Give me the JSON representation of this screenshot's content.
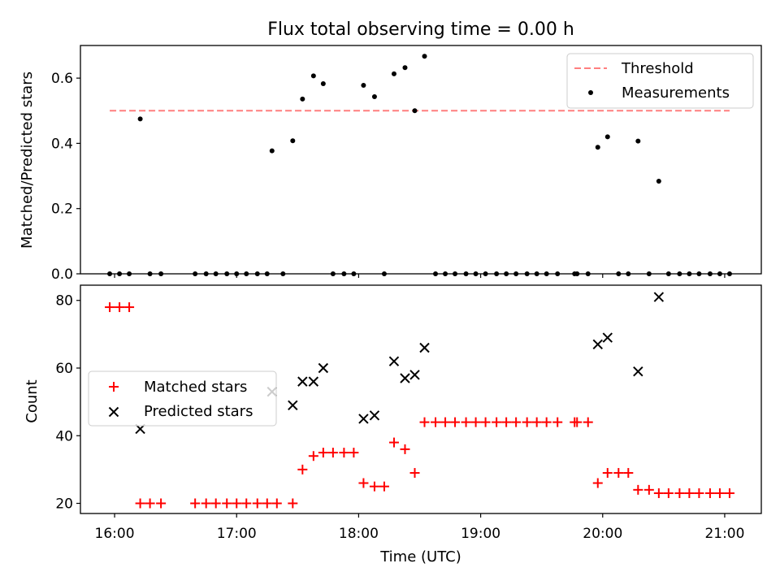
{
  "figure": {
    "title": "Flux total observing time = 0.00 h"
  },
  "chart_data": [
    {
      "type": "scatter",
      "ylabel": "Matched/Predicted stars",
      "xlim": [
        15.72,
        21.3
      ],
      "ylim": [
        0,
        0.7
      ],
      "yticks": [
        0.0,
        0.2,
        0.4,
        0.6
      ],
      "ytick_labels": [
        "0.0",
        "0.2",
        "0.4",
        "0.6"
      ],
      "xticks": [
        16,
        17,
        18,
        19,
        20,
        21
      ],
      "threshold": {
        "name": "Threshold",
        "value": 0.5,
        "x_range": [
          15.96,
          21.04
        ],
        "color": "#ff7f7f"
      },
      "series": [
        {
          "name": "Measurements",
          "color": "#000000",
          "x": [
            15.96,
            16.04,
            16.12,
            16.21,
            16.29,
            16.38,
            16.66,
            16.75,
            16.83,
            16.92,
            17.0,
            17.08,
            17.17,
            17.25,
            17.29,
            17.38,
            17.46,
            17.54,
            17.63,
            17.71,
            17.79,
            17.88,
            17.96,
            18.04,
            18.13,
            18.21,
            18.29,
            18.38,
            18.46,
            18.54,
            18.63,
            18.71,
            18.79,
            18.88,
            18.96,
            19.04,
            19.13,
            19.21,
            19.29,
            19.38,
            19.46,
            19.54,
            19.63,
            19.77,
            19.79,
            19.88,
            19.96,
            20.04,
            20.13,
            20.21,
            20.29,
            20.38,
            20.46,
            20.54,
            20.63,
            20.71,
            20.79,
            20.88,
            20.96,
            21.04
          ],
          "y": [
            0.0,
            0.0,
            0.0,
            0.475,
            0.0,
            0.0,
            0.0,
            0.0,
            0.0,
            0.0,
            0.0,
            0.0,
            0.0,
            0.0,
            0.377,
            0.0,
            0.408,
            0.536,
            0.607,
            0.583,
            0.0,
            0.0,
            0.0,
            0.578,
            0.543,
            0.0,
            0.613,
            0.632,
            0.5,
            0.667,
            0.0,
            0.0,
            0.0,
            0.0,
            0.0,
            0.0,
            0.0,
            0.0,
            0.0,
            0.0,
            0.0,
            0.0,
            0.0,
            0.0,
            0.0,
            0.0,
            0.388,
            0.42,
            0.0,
            0.0,
            0.407,
            0.0,
            0.284,
            0.0,
            0.0,
            0.0,
            0.0,
            0.0,
            0.0,
            0.0
          ]
        }
      ],
      "legend": "top-right"
    },
    {
      "type": "scatter",
      "xlabel": "Time (UTC)",
      "ylabel": "Count",
      "xlim": [
        15.72,
        21.3
      ],
      "ylim": [
        17,
        84.5
      ],
      "yticks": [
        20,
        40,
        60,
        80
      ],
      "ytick_labels": [
        "20",
        "40",
        "60",
        "80"
      ],
      "xticks": [
        16,
        17,
        18,
        19,
        20,
        21
      ],
      "xtick_labels": [
        "16:00",
        "17:00",
        "18:00",
        "19:00",
        "20:00",
        "21:00"
      ],
      "series": [
        {
          "name": "Matched stars",
          "marker": "+",
          "color": "#ff0000",
          "x": [
            15.96,
            16.04,
            16.12,
            16.21,
            16.29,
            16.38,
            16.66,
            16.75,
            16.83,
            16.92,
            17.0,
            17.08,
            17.17,
            17.25,
            17.33,
            17.46,
            17.54,
            17.63,
            17.71,
            17.79,
            17.88,
            17.96,
            18.04,
            18.13,
            18.21,
            18.29,
            18.38,
            18.46,
            18.54,
            18.63,
            18.71,
            18.79,
            18.88,
            18.96,
            19.04,
            19.13,
            19.21,
            19.29,
            19.38,
            19.46,
            19.54,
            19.63,
            19.77,
            19.79,
            19.88,
            19.96,
            20.04,
            20.13,
            20.21,
            20.29,
            20.38,
            20.46,
            20.54,
            20.63,
            20.71,
            20.79,
            20.88,
            20.96,
            21.04
          ],
          "y": [
            78,
            78,
            78,
            20,
            20,
            20,
            20,
            20,
            20,
            20,
            20,
            20,
            20,
            20,
            20,
            20,
            30,
            34,
            35,
            35,
            35,
            35,
            26,
            25,
            25,
            38,
            36,
            29,
            44,
            44,
            44,
            44,
            44,
            44,
            44,
            44,
            44,
            44,
            44,
            44,
            44,
            44,
            44,
            44,
            44,
            26,
            29,
            29,
            29,
            24,
            24,
            23,
            23,
            23,
            23,
            23,
            23,
            23,
            23
          ]
        },
        {
          "name": "Predicted stars",
          "marker": "x",
          "color": "#000000",
          "x": [
            16.21,
            17.29,
            17.46,
            17.54,
            17.63,
            17.71,
            18.04,
            18.13,
            18.29,
            18.38,
            18.46,
            18.54,
            19.96,
            20.04,
            20.29,
            20.46
          ],
          "y": [
            42,
            53,
            49,
            56,
            56,
            60,
            45,
            46,
            62,
            57,
            58,
            66,
            67,
            69,
            59,
            81
          ]
        }
      ],
      "legend": "center-left"
    }
  ]
}
